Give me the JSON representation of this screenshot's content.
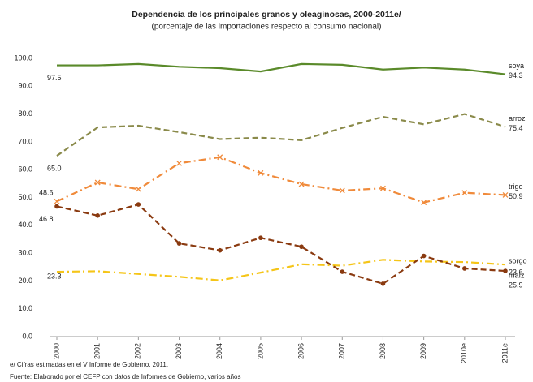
{
  "chart_data": {
    "type": "line",
    "title": "Dependencia de los principales granos y oleaginosas, 2000-2011e/",
    "subtitle": "(porcentaje de las importaciones respecto al consumo nacional)",
    "categories": [
      "2000",
      "2001",
      "2002",
      "2003",
      "2004",
      "2005",
      "2006",
      "2007",
      "2008",
      "2009",
      "2010e",
      "2011e"
    ],
    "ylim": [
      0,
      100
    ],
    "yticks": [
      {
        "value": 0,
        "label": "0.0"
      },
      {
        "value": 10,
        "label": "10.0"
      },
      {
        "value": 20,
        "label": "20.0"
      },
      {
        "value": 30,
        "label": "30.0"
      },
      {
        "value": 40,
        "label": "40.0"
      },
      {
        "value": 50,
        "label": "50.0"
      },
      {
        "value": 60,
        "label": "60.0"
      },
      {
        "value": 70,
        "label": "70.0"
      },
      {
        "value": 80,
        "label": "80.0"
      },
      {
        "value": 90,
        "label": "90.0"
      },
      {
        "value": 100,
        "label": "100.0"
      }
    ],
    "grid": false,
    "series": [
      {
        "name": "soya",
        "color": "#5a8a2a",
        "style": "solid",
        "values": [
          97.5,
          97.5,
          98.0,
          97.0,
          96.5,
          95.3,
          98.0,
          97.7,
          96.0,
          96.7,
          96.0,
          94.3
        ],
        "value_labels": [
          "97.5",
          null,
          null,
          null,
          null,
          null,
          null,
          null,
          null,
          null,
          null,
          "94.3"
        ]
      },
      {
        "name": "arroz",
        "color": "#8a8a4a",
        "style": "dash",
        "values": [
          65.0,
          75.2,
          75.8,
          73.5,
          71.0,
          71.5,
          70.6,
          75.0,
          79.0,
          76.3,
          80.0,
          75.4
        ],
        "value_labels": [
          "65.0",
          null,
          null,
          null,
          null,
          null,
          null,
          null,
          null,
          null,
          null,
          "75.4"
        ]
      },
      {
        "name": "trigo",
        "color": "#f08a3a",
        "style": "dashdot",
        "marker": "x",
        "values": [
          48.6,
          55.4,
          53.0,
          62.3,
          64.5,
          58.8,
          54.8,
          52.5,
          53.3,
          48.2,
          51.7,
          50.9
        ],
        "value_labels": [
          "48.6",
          null,
          null,
          null,
          null,
          null,
          null,
          null,
          null,
          null,
          null,
          "50.9"
        ]
      },
      {
        "name": "maíz",
        "color": "#f5c518",
        "style": "dashdot",
        "values": [
          23.3,
          23.5,
          22.5,
          21.5,
          20.2,
          23.0,
          26.0,
          25.5,
          27.6,
          27.0,
          26.8,
          25.9
        ],
        "value_labels": [
          "23.3",
          null,
          null,
          null,
          null,
          null,
          null,
          null,
          null,
          null,
          null,
          "25.9"
        ]
      },
      {
        "name": "sorgo",
        "color": "#8a3a10",
        "style": "dash",
        "marker": "circle",
        "values": [
          46.8,
          43.5,
          47.5,
          33.5,
          31.0,
          35.5,
          32.3,
          23.3,
          19.0,
          29.0,
          24.5,
          23.6
        ],
        "value_labels": [
          "46.8",
          null,
          null,
          null,
          null,
          null,
          null,
          null,
          null,
          null,
          null,
          "23.6"
        ]
      }
    ],
    "notes": [
      "e/ Cifras estimadas en el V Informe de Gobierno, 2011.",
      "Fuente:  Elaborado por el CEFP con datos de Informes de Gobierno, varios años"
    ]
  }
}
